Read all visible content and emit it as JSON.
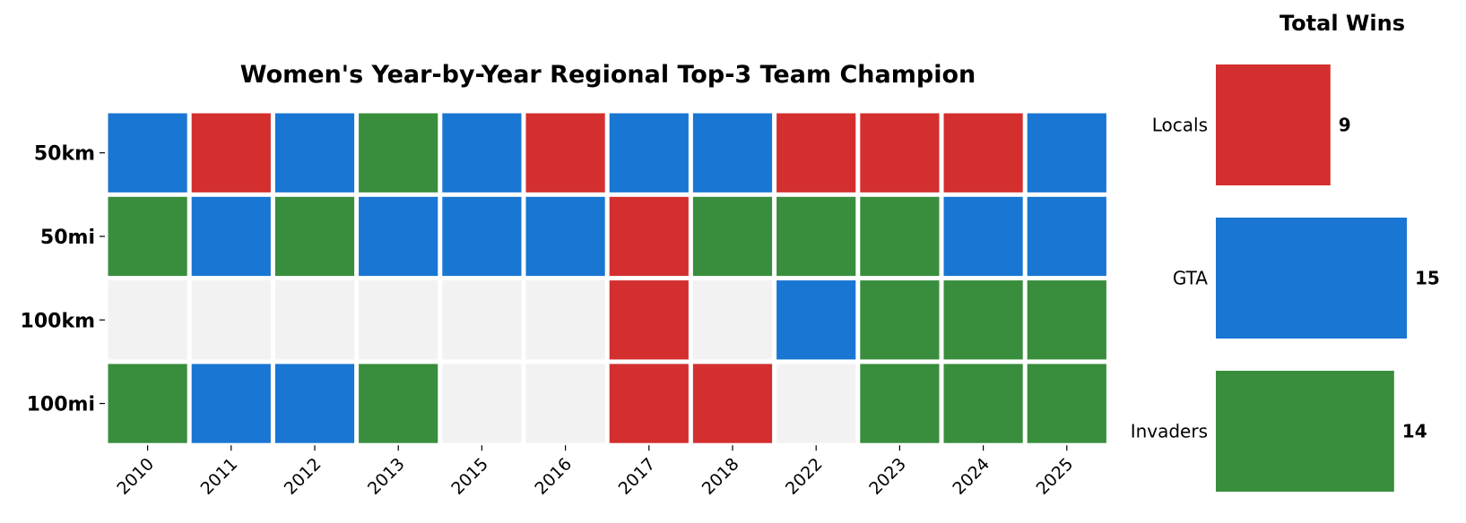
{
  "chart_data": [
    {
      "type": "heatmap",
      "title": "Women's Year-by-Year Regional Top-3 Team Champion",
      "x": [
        "2010",
        "2011",
        "2012",
        "2013",
        "2015",
        "2016",
        "2017",
        "2018",
        "2022",
        "2023",
        "2024",
        "2025"
      ],
      "y": [
        "50km",
        "50mi",
        "100km",
        "100mi"
      ],
      "values": [
        [
          "GTA",
          "Locals",
          "GTA",
          "Invaders",
          "GTA",
          "Locals",
          "GTA",
          "GTA",
          "Locals",
          "Locals",
          "Locals",
          "GTA"
        ],
        [
          "Invaders",
          "GTA",
          "Invaders",
          "GTA",
          "GTA",
          "GTA",
          "Locals",
          "Invaders",
          "Invaders",
          "Invaders",
          "GTA",
          "GTA"
        ],
        [
          null,
          null,
          null,
          null,
          null,
          null,
          "Locals",
          null,
          "GTA",
          "Invaders",
          "Invaders",
          "Invaders"
        ],
        [
          "Invaders",
          "GTA",
          "GTA",
          "Invaders",
          null,
          null,
          "Locals",
          "Locals",
          null,
          "Invaders",
          "Invaders",
          "Invaders"
        ]
      ],
      "colors": {
        "Locals": "#d32f2f",
        "GTA": "#1976d2",
        "Invaders": "#388e3c",
        "none": "#f2f2f2"
      }
    },
    {
      "type": "bar",
      "orientation": "horizontal",
      "title": "Total Wins",
      "categories": [
        "Locals",
        "GTA",
        "Invaders"
      ],
      "values": [
        9,
        15,
        14
      ],
      "colors": [
        "#d32f2f",
        "#1976d2",
        "#388e3c"
      ]
    }
  ]
}
